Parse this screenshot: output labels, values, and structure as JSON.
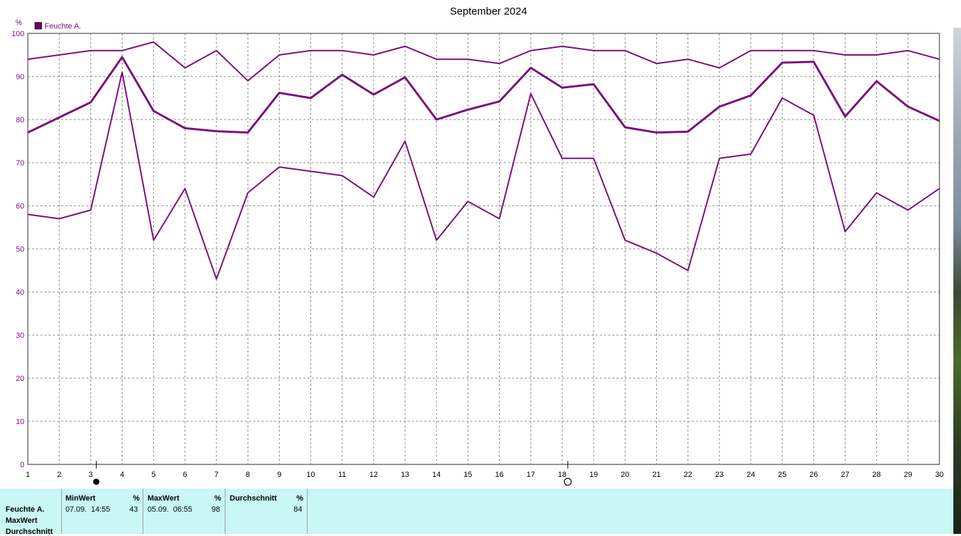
{
  "chart_data": {
    "type": "line",
    "title": "September 2024",
    "ylabel": "%",
    "ylim": [
      0,
      100
    ],
    "yticks": [
      0,
      10,
      20,
      30,
      40,
      50,
      60,
      70,
      80,
      90,
      100
    ],
    "x": [
      1,
      2,
      3,
      4,
      5,
      6,
      7,
      8,
      9,
      10,
      11,
      12,
      13,
      14,
      15,
      16,
      17,
      18,
      19,
      20,
      21,
      22,
      23,
      24,
      25,
      26,
      27,
      28,
      29,
      30
    ],
    "grid": true,
    "legend_position": "top-left",
    "legend": [
      "Feuchte A."
    ],
    "series": [
      {
        "role": "max",
        "values": [
          94,
          95,
          96,
          96,
          98,
          92,
          96,
          89,
          95,
          96,
          96,
          95,
          97,
          94,
          94,
          93,
          96,
          97,
          96,
          96,
          93,
          94,
          92,
          96,
          96,
          96,
          95,
          95,
          96,
          94
        ]
      },
      {
        "role": "avg",
        "values": [
          77,
          80.5,
          84,
          94.5,
          82,
          78,
          77.3,
          77,
          86.2,
          85,
          90.4,
          85.8,
          89.8,
          80,
          82.3,
          84.2,
          92,
          87.4,
          88.2,
          78.2,
          77,
          77.2,
          83,
          85.6,
          93.2,
          93.4,
          80.7,
          88.9,
          83,
          79.7
        ]
      },
      {
        "role": "min",
        "values": [
          58,
          57,
          59,
          91,
          52,
          64,
          43,
          63,
          69,
          68,
          67,
          62,
          75,
          52,
          61,
          57,
          86,
          71,
          71,
          52,
          49,
          45,
          71,
          72,
          85,
          81,
          54,
          63,
          59,
          64
        ]
      }
    ],
    "moon_markers": [
      {
        "day": 3,
        "phase": "new-moon"
      },
      {
        "day": 18,
        "phase": "full-moon"
      }
    ],
    "line_color": "#7a0f7a"
  },
  "stats": {
    "sensor_label": "Feuchte A.",
    "row_labels": [
      "Feuchte A.",
      "MaxWert",
      "Durchschnitt"
    ],
    "columns": [
      {
        "header": "MinWert",
        "unit": "%",
        "time": "07.09.  14:55",
        "value": "43"
      },
      {
        "header": "MaxWert",
        "unit": "%",
        "time": "05.09.  06:55",
        "value": "98"
      },
      {
        "header": "Durchschnitt",
        "unit": "%",
        "time": "",
        "value": "84"
      }
    ],
    "panel_color": "#c8f7f5"
  }
}
